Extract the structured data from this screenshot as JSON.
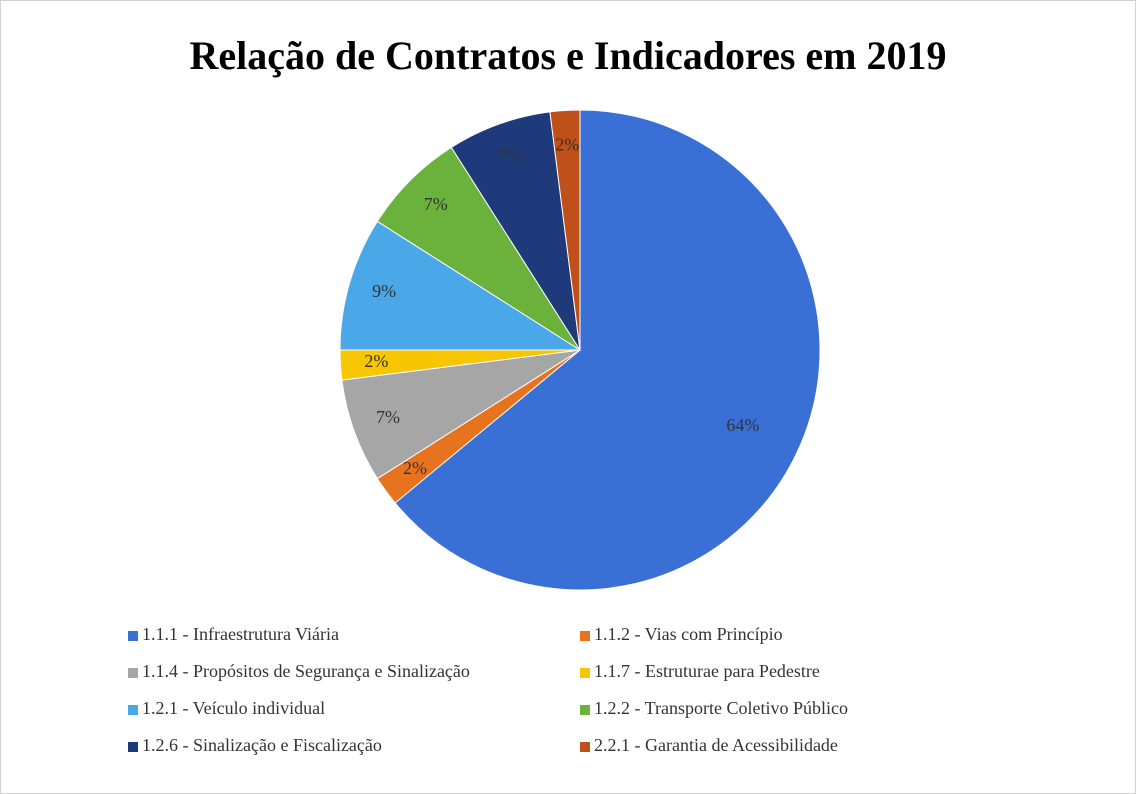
{
  "chart_data": {
    "type": "pie",
    "title": "Relação de Contratos e Indicadores em 2019",
    "categories": [
      "1.1.1 - Infraestrutura Viária",
      "1.1.2 - Vias com Princípio",
      "1.1.4 - Propósitos de Segurança e Sinalização",
      "1.1.7 - Estruturae para Pedestre",
      "1.2.1 - Veículo individual",
      "1.2.2 - Transporte Coletivo Público",
      "1.2.6 - Sinalização e Fiscalização",
      "2.2.1 - Garantia de Acessibilidade"
    ],
    "values": [
      64,
      2,
      7,
      2,
      9,
      7,
      7,
      2
    ],
    "value_labels": [
      "64%",
      "2%",
      "7%",
      "2%",
      "9%",
      "7%",
      "7%",
      "2%"
    ],
    "colors": [
      "#3a70d6",
      "#e8731f",
      "#a6a6a6",
      "#f7c600",
      "#4aa8e8",
      "#6ab23c",
      "#1f3a7a",
      "#c0501a"
    ],
    "legend": "bottom"
  }
}
